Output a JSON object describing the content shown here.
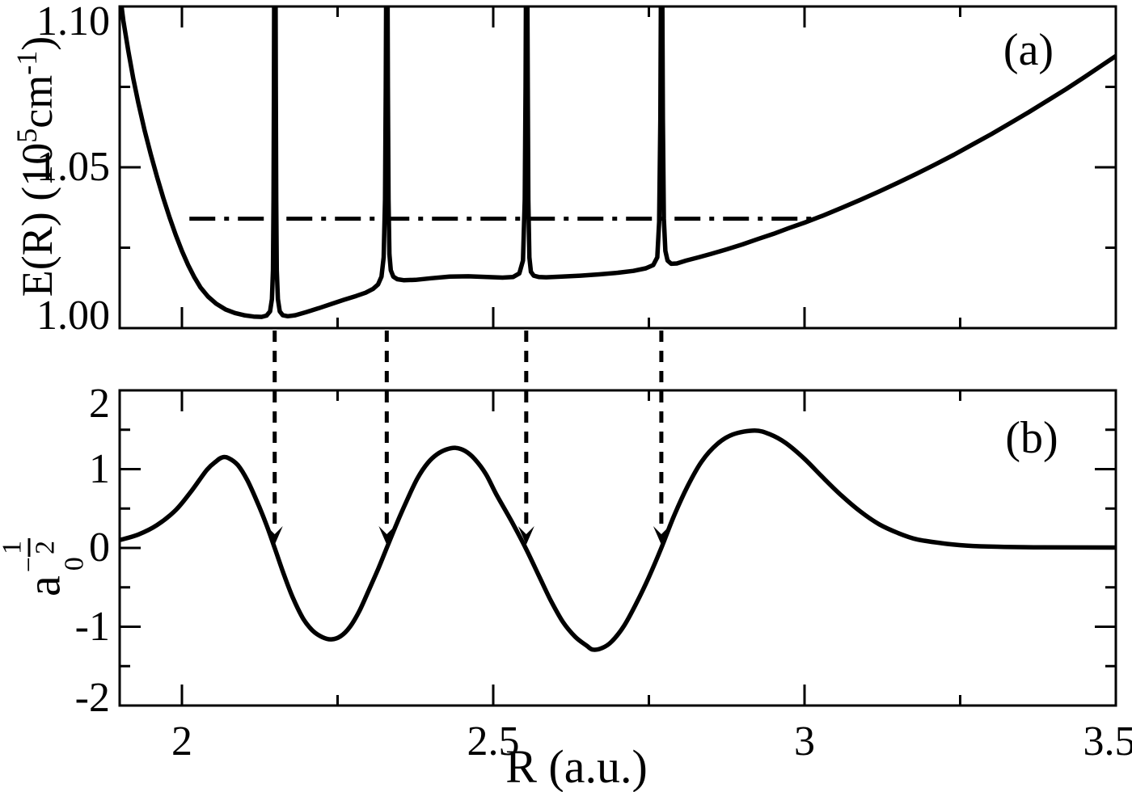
{
  "figure": {
    "xlabel": "R (a.u.)",
    "panel_a": {
      "label": "(a)",
      "ylabel_parts": {
        "prefix": "E(R) (10",
        "sup1": "5",
        "mid": "cm",
        "sup2": "-1",
        "suffix": ")"
      }
    },
    "panel_b": {
      "label": "(b)",
      "ylabel_parts": {
        "base": "a",
        "sub": "0",
        "minus": "−",
        "num": "1",
        "den": "2"
      }
    },
    "line_color": "#000000",
    "background": "#ffffff"
  },
  "chart_data": [
    {
      "type": "line",
      "panel": "a",
      "title": "(a)",
      "ylabel": "E(R) (10^5 cm^-1)",
      "xlim": [
        1.9,
        3.5
      ],
      "ylim": [
        1.0,
        1.1
      ],
      "grid": false,
      "x_major_ticks": [
        2.0,
        2.5,
        3.0,
        3.5
      ],
      "x_minor_ticks": [
        2.25,
        2.75,
        3.25
      ],
      "y_major_ticks": [
        1.0,
        1.05,
        1.1
      ],
      "y_tick_labels": [
        "1.00",
        "1.05",
        "1.10"
      ],
      "y_minor_ticks": [
        1.025,
        1.075
      ],
      "resonance_spike_positions_R": [
        2.149,
        2.329,
        2.553,
        2.77
      ],
      "energy_level_dashdot": {
        "E": 1.034,
        "R_span": [
          2.012,
          3.016
        ]
      },
      "series": [
        {
          "name": "potential-curve-E(R)",
          "points": [
            [
              1.9,
              1.1045
            ],
            [
              1.906,
              1.0955
            ],
            [
              1.914,
              1.086
            ],
            [
              1.922,
              1.0775
            ],
            [
              1.93,
              1.07
            ],
            [
              1.94,
              1.0615
            ],
            [
              1.95,
              1.054
            ],
            [
              1.96,
              1.047
            ],
            [
              1.97,
              1.0405
            ],
            [
              1.98,
              1.0345
            ],
            [
              1.99,
              1.029
            ],
            [
              2.0,
              1.024
            ],
            [
              2.01,
              1.0196
            ],
            [
              2.02,
              1.0158
            ],
            [
              2.03,
              1.0126
            ],
            [
              2.042,
              1.0098
            ],
            [
              2.055,
              1.0076
            ],
            [
              2.07,
              1.0058
            ],
            [
              2.085,
              1.0047
            ],
            [
              2.1,
              1.004
            ],
            [
              2.115,
              1.0036
            ],
            [
              2.128,
              1.0035
            ],
            [
              2.136,
              1.0039
            ],
            [
              2.1415,
              1.0052
            ],
            [
              2.1445,
              1.009
            ],
            [
              2.1462,
              1.018
            ],
            [
              2.1472,
              1.04
            ],
            [
              2.1478,
              1.075
            ],
            [
              2.1482,
              1.1045
            ],
            [
              2.1504,
              1.1045
            ],
            [
              2.1508,
              1.075
            ],
            [
              2.1514,
              1.04
            ],
            [
              2.1524,
              1.018
            ],
            [
              2.1542,
              1.009
            ],
            [
              2.1572,
              1.0052
            ],
            [
              2.162,
              1.004
            ],
            [
              2.17,
              1.0037
            ],
            [
              2.182,
              1.004
            ],
            [
              2.2,
              1.005
            ],
            [
              2.22,
              1.0062
            ],
            [
              2.24,
              1.0075
            ],
            [
              2.26,
              1.0088
            ],
            [
              2.28,
              1.01
            ],
            [
              2.295,
              1.011
            ],
            [
              2.307,
              1.0122
            ],
            [
              2.315,
              1.0136
            ],
            [
              2.3205,
              1.016
            ],
            [
              2.324,
              1.022
            ],
            [
              2.3262,
              1.04
            ],
            [
              2.3274,
              1.075
            ],
            [
              2.328,
              1.1045
            ],
            [
              2.3302,
              1.1045
            ],
            [
              2.3308,
              1.075
            ],
            [
              2.3318,
              1.04
            ],
            [
              2.3332,
              1.023
            ],
            [
              2.3355,
              1.018
            ],
            [
              2.3395,
              1.016
            ],
            [
              2.346,
              1.0152
            ],
            [
              2.356,
              1.0149
            ],
            [
              2.375,
              1.015
            ],
            [
              2.4,
              1.0155
            ],
            [
              2.43,
              1.016
            ],
            [
              2.46,
              1.0161
            ],
            [
              2.49,
              1.0159
            ],
            [
              2.515,
              1.0157
            ],
            [
              2.532,
              1.0159
            ],
            [
              2.542,
              1.017
            ],
            [
              2.5478,
              1.021
            ],
            [
              2.5506,
              1.04
            ],
            [
              2.552,
              1.075
            ],
            [
              2.5526,
              1.1045
            ],
            [
              2.5548,
              1.1045
            ],
            [
              2.5554,
              1.075
            ],
            [
              2.5564,
              1.04
            ],
            [
              2.558,
              1.022
            ],
            [
              2.5605,
              1.0175
            ],
            [
              2.565,
              1.0163
            ],
            [
              2.573,
              1.0159
            ],
            [
              2.585,
              1.0158
            ],
            [
              2.61,
              1.016
            ],
            [
              2.64,
              1.0163
            ],
            [
              2.67,
              1.0167
            ],
            [
              2.7,
              1.0172
            ],
            [
              2.725,
              1.0178
            ],
            [
              2.745,
              1.0186
            ],
            [
              2.757,
              1.0196
            ],
            [
              2.7635,
              1.022
            ],
            [
              2.7665,
              1.033
            ],
            [
              2.7685,
              1.065
            ],
            [
              2.7694,
              1.1045
            ],
            [
              2.7716,
              1.1045
            ],
            [
              2.7725,
              1.065
            ],
            [
              2.774,
              1.034
            ],
            [
              2.7765,
              1.024
            ],
            [
              2.78,
              1.021
            ],
            [
              2.786,
              1.02
            ],
            [
              2.795,
              1.0201
            ],
            [
              2.81,
              1.021
            ],
            [
              2.83,
              1.022
            ],
            [
              2.85,
              1.0231
            ],
            [
              2.875,
              1.0245
            ],
            [
              2.9,
              1.026
            ],
            [
              2.925,
              1.0277
            ],
            [
              2.95,
              1.0293
            ],
            [
              2.975,
              1.0311
            ],
            [
              3.0,
              1.0328
            ],
            [
              3.03,
              1.035
            ],
            [
              3.06,
              1.0374
            ],
            [
              3.09,
              1.0399
            ],
            [
              3.12,
              1.0425
            ],
            [
              3.15,
              1.0452
            ],
            [
              3.18,
              1.048
            ],
            [
              3.21,
              1.0509
            ],
            [
              3.24,
              1.0539
            ],
            [
              3.27,
              1.0571
            ],
            [
              3.3,
              1.0603
            ],
            [
              3.33,
              1.0637
            ],
            [
              3.36,
              1.0671
            ],
            [
              3.39,
              1.0707
            ],
            [
              3.42,
              1.0743
            ],
            [
              3.45,
              1.0781
            ],
            [
              3.48,
              1.082
            ],
            [
              3.5,
              1.0846
            ]
          ]
        }
      ]
    },
    {
      "type": "line",
      "panel": "b",
      "title": "(b)",
      "ylabel": "a_0^(-1/2)",
      "xlabel": "R (a.u.)",
      "xlim": [
        1.9,
        3.5
      ],
      "ylim": [
        -2,
        2
      ],
      "grid": false,
      "x_major_ticks": [
        2.0,
        2.5,
        3.0,
        3.5
      ],
      "x_tick_labels": [
        "2",
        "2.5",
        "3",
        "3.5"
      ],
      "x_minor_ticks": [
        2.25,
        2.75,
        3.25
      ],
      "y_major_ticks": [
        -2,
        -1,
        0,
        1,
        2
      ],
      "y_tick_labels": [
        "-2",
        "-1",
        "0",
        "1",
        "2"
      ],
      "y_minor_ticks": [
        -1.5,
        -0.5,
        0.5,
        1.5
      ],
      "arrow_positions_R": [
        2.149,
        2.329,
        2.553,
        2.77
      ],
      "extrema": {
        "maxima": [
          [
            2.065,
            1.15
          ],
          [
            2.44,
            1.27
          ],
          [
            2.92,
            1.49
          ]
        ],
        "minima": [
          [
            2.24,
            -1.16
          ],
          [
            2.66,
            -1.29
          ]
        ]
      },
      "series": [
        {
          "name": "wavefunction-amplitude",
          "points": [
            [
              1.9,
              0.1
            ],
            [
              1.93,
              0.17
            ],
            [
              1.96,
              0.29
            ],
            [
              1.99,
              0.48
            ],
            [
              2.015,
              0.72
            ],
            [
              2.04,
              0.99
            ],
            [
              2.055,
              1.1
            ],
            [
              2.065,
              1.15
            ],
            [
              2.075,
              1.14
            ],
            [
              2.09,
              1.05
            ],
            [
              2.105,
              0.86
            ],
            [
              2.12,
              0.6
            ],
            [
              2.135,
              0.31
            ],
            [
              2.149,
              0.0
            ],
            [
              2.163,
              -0.32
            ],
            [
              2.178,
              -0.63
            ],
            [
              2.195,
              -0.9
            ],
            [
              2.21,
              -1.05
            ],
            [
              2.225,
              -1.13
            ],
            [
              2.24,
              -1.16
            ],
            [
              2.255,
              -1.12
            ],
            [
              2.27,
              -1.0
            ],
            [
              2.285,
              -0.8
            ],
            [
              2.3,
              -0.54
            ],
            [
              2.315,
              -0.27
            ],
            [
              2.329,
              0.0
            ],
            [
              2.345,
              0.31
            ],
            [
              2.36,
              0.58
            ],
            [
              2.378,
              0.88
            ],
            [
              2.395,
              1.08
            ],
            [
              2.41,
              1.19
            ],
            [
              2.425,
              1.25
            ],
            [
              2.44,
              1.27
            ],
            [
              2.455,
              1.23
            ],
            [
              2.47,
              1.13
            ],
            [
              2.488,
              0.94
            ],
            [
              2.505,
              0.68
            ],
            [
              2.53,
              0.33
            ],
            [
              2.552,
              0.0
            ],
            [
              2.572,
              -0.33
            ],
            [
              2.592,
              -0.66
            ],
            [
              2.612,
              -0.94
            ],
            [
              2.632,
              -1.13
            ],
            [
              2.65,
              -1.24
            ],
            [
              2.66,
              -1.29
            ],
            [
              2.675,
              -1.27
            ],
            [
              2.69,
              -1.19
            ],
            [
              2.71,
              -0.99
            ],
            [
              2.73,
              -0.7
            ],
            [
              2.75,
              -0.37
            ],
            [
              2.77,
              0.0
            ],
            [
              2.79,
              0.4
            ],
            [
              2.812,
              0.78
            ],
            [
              2.835,
              1.1
            ],
            [
              2.86,
              1.32
            ],
            [
              2.885,
              1.44
            ],
            [
              2.92,
              1.49
            ],
            [
              2.945,
              1.44
            ],
            [
              2.97,
              1.33
            ],
            [
              3.0,
              1.13
            ],
            [
              3.03,
              0.89
            ],
            [
              3.06,
              0.66
            ],
            [
              3.09,
              0.46
            ],
            [
              3.12,
              0.3
            ],
            [
              3.15,
              0.19
            ],
            [
              3.18,
              0.11
            ],
            [
              3.22,
              0.06
            ],
            [
              3.26,
              0.03
            ],
            [
              3.31,
              0.015
            ],
            [
              3.38,
              0.008
            ],
            [
              3.5,
              0.005
            ]
          ]
        }
      ]
    }
  ]
}
